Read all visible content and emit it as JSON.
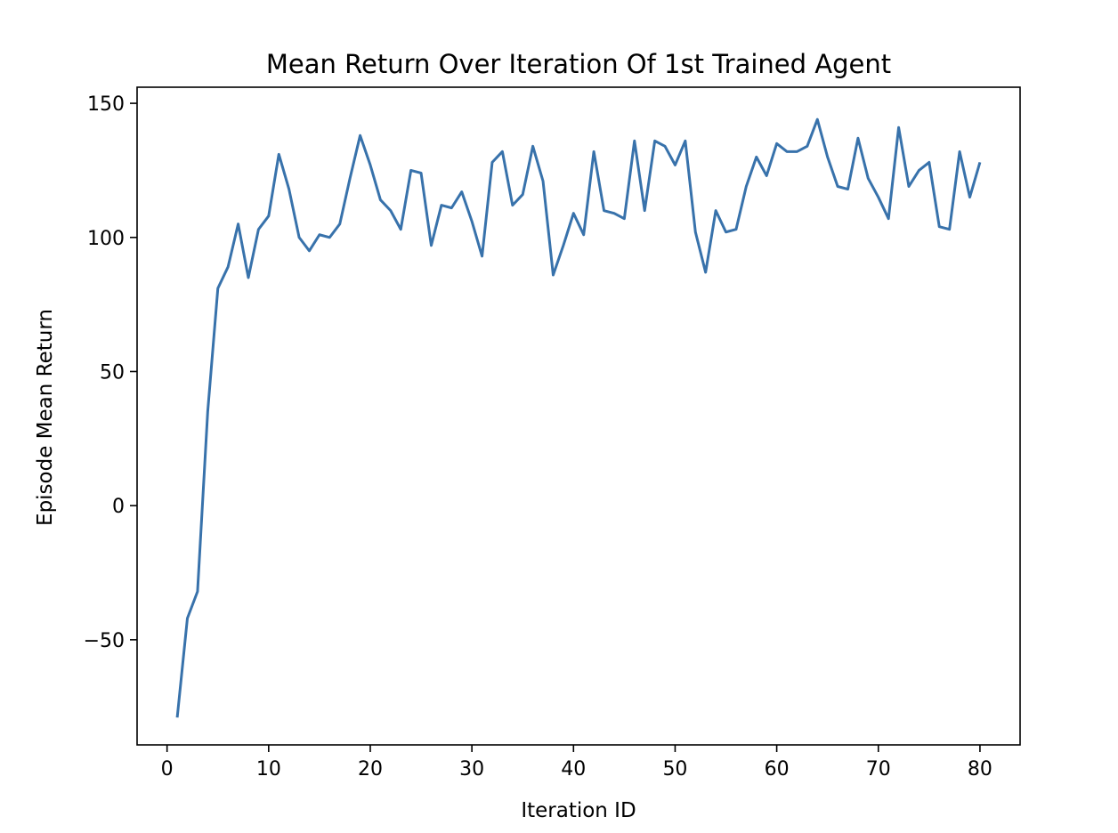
{
  "chart_data": {
    "type": "line",
    "title": "Mean Return Over Iteration Of 1st Trained Agent",
    "xlabel": "Iteration ID",
    "ylabel": "Episode Mean Return",
    "xlim": [
      -2.95,
      83.95
    ],
    "ylim": [
      -89.2,
      156.0
    ],
    "xticks": [
      0,
      10,
      20,
      30,
      40,
      50,
      60,
      70,
      80
    ],
    "xtick_labels": [
      "0",
      "10",
      "20",
      "30",
      "40",
      "50",
      "60",
      "70",
      "80"
    ],
    "yticks": [
      -50,
      0,
      50,
      100,
      150
    ],
    "ytick_labels": [
      "−50",
      "0",
      "50",
      "100",
      "150"
    ],
    "grid": false,
    "legend": "none",
    "line_color": "#3872ab",
    "series": [
      {
        "x": [
          1,
          2,
          3,
          4,
          5,
          6,
          7,
          8,
          9,
          10,
          11,
          12,
          13,
          14,
          15,
          16,
          17,
          18,
          19,
          20,
          21,
          22,
          23,
          24,
          25,
          26,
          27,
          28,
          29,
          30,
          31,
          32,
          33,
          34,
          35,
          36,
          37,
          38,
          39,
          40,
          41,
          42,
          43,
          44,
          45,
          46,
          47,
          48,
          49,
          50,
          51,
          52,
          53,
          54,
          55,
          56,
          57,
          58,
          59,
          60,
          61,
          62,
          63,
          64,
          65,
          66,
          67,
          68,
          69,
          70,
          71,
          72,
          73,
          74,
          75,
          76,
          77,
          78,
          79,
          80
        ],
        "values": [
          -79,
          -42,
          -32,
          35,
          81,
          89,
          105,
          85,
          103,
          108,
          131,
          118,
          100,
          95,
          101,
          100,
          105,
          122,
          138,
          127,
          114,
          110,
          103,
          125,
          124,
          97,
          112,
          111,
          117,
          106,
          93,
          128,
          132,
          112,
          116,
          134,
          121,
          86,
          97,
          109,
          101,
          132,
          110,
          109,
          107,
          136,
          110,
          136,
          134,
          127,
          136,
          102,
          87,
          110,
          102,
          103,
          119,
          130,
          123,
          135,
          132,
          132,
          134,
          144,
          130,
          119,
          118,
          137,
          122,
          115,
          107,
          141,
          119,
          125,
          128,
          104,
          103,
          132,
          115,
          128
        ]
      }
    ]
  }
}
